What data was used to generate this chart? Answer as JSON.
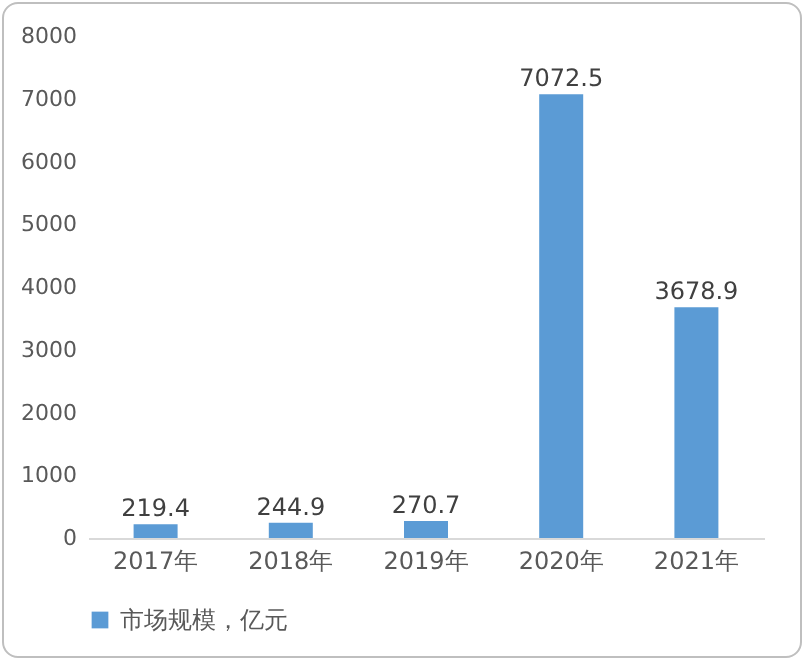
{
  "chart_data": {
    "type": "bar",
    "categories": [
      "2017年",
      "2018年",
      "2019年",
      "2020年",
      "2021年"
    ],
    "series": [
      {
        "name": "市场规模，亿元",
        "color": "#5b9bd5",
        "values": [
          219.4,
          244.9,
          270.7,
          7072.5,
          3678.9
        ]
      }
    ],
    "ylim": [
      0,
      8000
    ],
    "yticks": [
      0,
      1000,
      2000,
      3000,
      4000,
      5000,
      6000,
      7000,
      8000
    ],
    "data_labels": true,
    "legend": "bottom"
  }
}
